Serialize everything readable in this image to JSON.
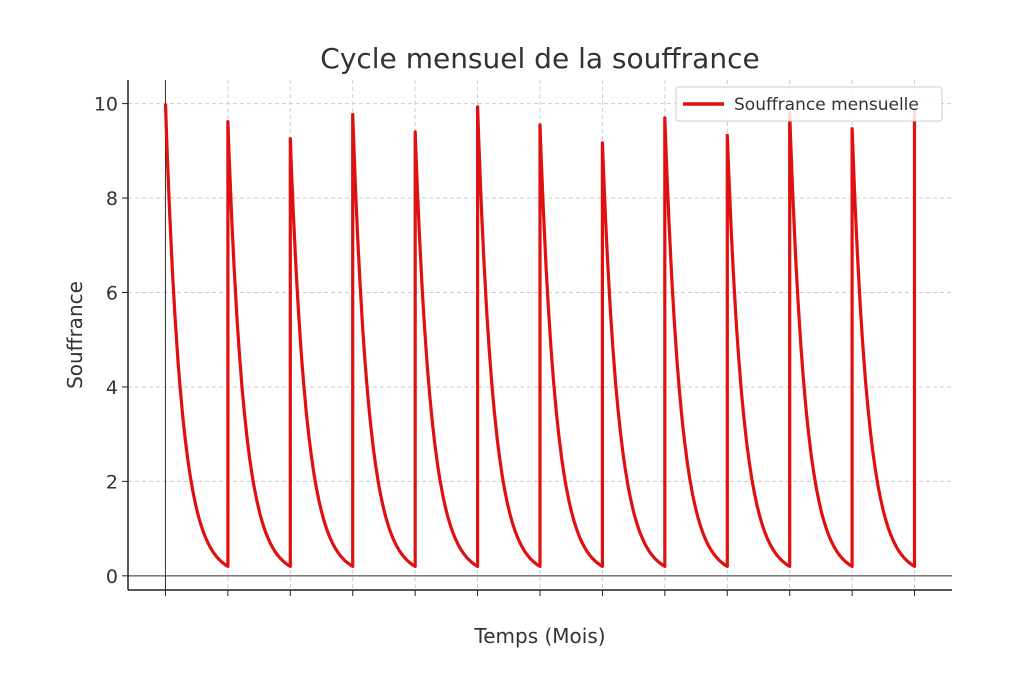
{
  "chart_data": {
    "type": "line",
    "title": "Cycle mensuel de la souffrance",
    "xlabel": "Temps (Mois)",
    "ylabel": "Souffrance",
    "xlim": [
      -0.6,
      12.6
    ],
    "ylim": [
      -0.3,
      10.5
    ],
    "xticks": [
      0,
      1,
      2,
      3,
      4,
      5,
      6,
      7,
      8,
      9,
      10,
      11,
      12
    ],
    "xtick_labels_shown": false,
    "yticks": [
      0,
      2,
      4,
      6,
      8,
      10
    ],
    "ytick_labels": [
      "0",
      "2",
      "4",
      "6",
      "8",
      "10"
    ],
    "grid": true,
    "legend_position": "top-right",
    "series": [
      {
        "name": "Souffrance mensuelle",
        "color": "#e01010",
        "description_of_shape": "exponential decay each month from peak to floor, then jump to next peak",
        "peak_months": [
          0,
          1,
          2,
          3,
          4,
          5,
          6,
          7,
          8,
          9,
          10,
          11,
          12
        ],
        "peaks": [
          10.0,
          9.62,
          9.26,
          9.77,
          9.4,
          9.93,
          9.55,
          9.17,
          9.7,
          9.33,
          9.8,
          9.47,
          9.9
        ],
        "floor": 0.2
      }
    ]
  }
}
